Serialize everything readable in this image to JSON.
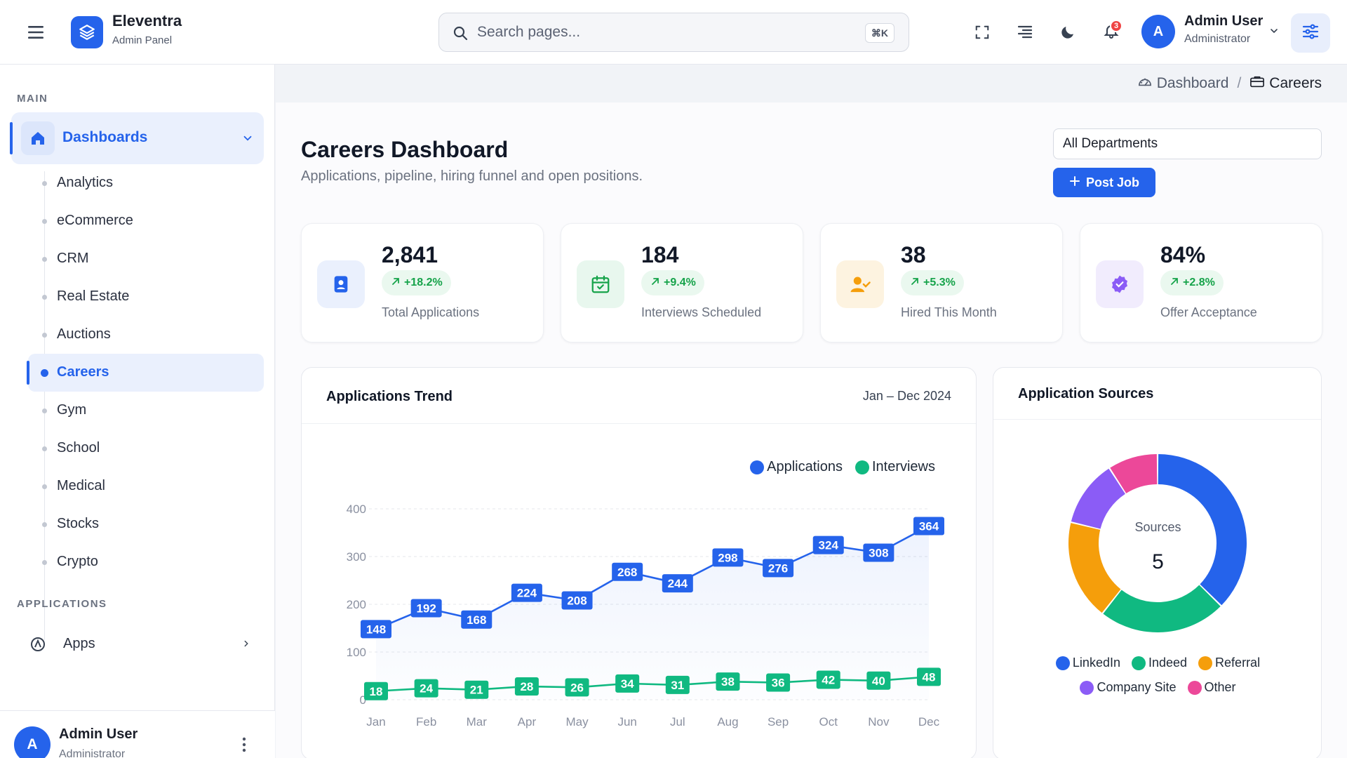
{
  "brand": {
    "name": "Eleventra",
    "subtitle": "Admin Panel"
  },
  "search": {
    "placeholder": "Search pages...",
    "shortcut": "⌘K"
  },
  "header": {
    "notifications_count": "3",
    "user": {
      "initial": "A",
      "name": "Admin User",
      "role": "Administrator"
    },
    "icons": [
      "menu-icon",
      "fullscreen-icon",
      "align-icon",
      "moon-icon",
      "bell-icon",
      "chevron-down-icon",
      "sliders-icon"
    ]
  },
  "sidebar": {
    "section_main": "MAIN",
    "dashboards_label": "Dashboards",
    "items": [
      {
        "label": "Analytics",
        "active": false
      },
      {
        "label": "eCommerce",
        "active": false
      },
      {
        "label": "CRM",
        "active": false
      },
      {
        "label": "Real Estate",
        "active": false
      },
      {
        "label": "Auctions",
        "active": false
      },
      {
        "label": "Careers",
        "active": true
      },
      {
        "label": "Gym",
        "active": false
      },
      {
        "label": "School",
        "active": false
      },
      {
        "label": "Medical",
        "active": false
      },
      {
        "label": "Stocks",
        "active": false
      },
      {
        "label": "Crypto",
        "active": false
      }
    ],
    "section_applications": "APPLICATIONS",
    "apps_label": "Apps",
    "footer_user": {
      "initial": "A",
      "name": "Admin User",
      "role": "Administrator"
    }
  },
  "breadcrumb": {
    "parent": "Dashboard",
    "separator": "/",
    "current": "Careers"
  },
  "page": {
    "title": "Careers Dashboard",
    "subtitle": "Applications, pipeline, hiring funnel and open positions.",
    "department_select": "All Departments",
    "post_job_label": "Post Job"
  },
  "stats": [
    {
      "value": "2,841",
      "change": "+18.2%",
      "label": "Total Applications",
      "icon": "user-badge-icon",
      "color": "#2563eb",
      "bg": "#eaf0fd"
    },
    {
      "value": "184",
      "change": "+9.4%",
      "label": "Interviews Scheduled",
      "icon": "calendar-check-icon",
      "color": "#16a34a",
      "bg": "#e8f7ee"
    },
    {
      "value": "38",
      "change": "+5.3%",
      "label": "Hired This Month",
      "icon": "user-check-icon",
      "color": "#f59e0b",
      "bg": "#fdf3e0"
    },
    {
      "value": "84%",
      "change": "+2.8%",
      "label": "Offer Acceptance",
      "icon": "badge-check-icon",
      "color": "#8b5cf6",
      "bg": "#f1ecfd"
    }
  ],
  "trend": {
    "title": "Applications Trend",
    "range": "Jan – Dec 2024"
  },
  "sources": {
    "title": "Application Sources",
    "center_label": "Sources",
    "center_value": "5"
  },
  "chart_data": [
    {
      "type": "line",
      "title": "Applications Trend",
      "categories": [
        "Jan",
        "Feb",
        "Mar",
        "Apr",
        "May",
        "Jun",
        "Jul",
        "Aug",
        "Sep",
        "Oct",
        "Nov",
        "Dec"
      ],
      "series": [
        {
          "name": "Applications",
          "color": "#2563eb",
          "values": [
            148,
            192,
            168,
            224,
            208,
            268,
            244,
            298,
            276,
            324,
            308,
            364
          ]
        },
        {
          "name": "Interviews",
          "color": "#10b981",
          "values": [
            18,
            24,
            21,
            28,
            26,
            34,
            31,
            38,
            36,
            42,
            40,
            48
          ]
        }
      ],
      "ylim": [
        0,
        400
      ],
      "yticks": [
        "0",
        "100",
        "200",
        "300",
        "400"
      ],
      "grid": true,
      "legend": "top-right"
    },
    {
      "type": "pie",
      "title": "Application Sources",
      "slices": [
        {
          "name": "LinkedIn",
          "color": "#2563eb",
          "value": 37
        },
        {
          "name": "Indeed",
          "color": "#10b981",
          "value": 23
        },
        {
          "name": "Referral",
          "color": "#f59e0b",
          "value": 18
        },
        {
          "name": "Company Site",
          "color": "#8b5cf6",
          "value": 12
        },
        {
          "name": "Other",
          "color": "#ec4899",
          "value": 9
        }
      ],
      "legend": "bottom"
    }
  ]
}
